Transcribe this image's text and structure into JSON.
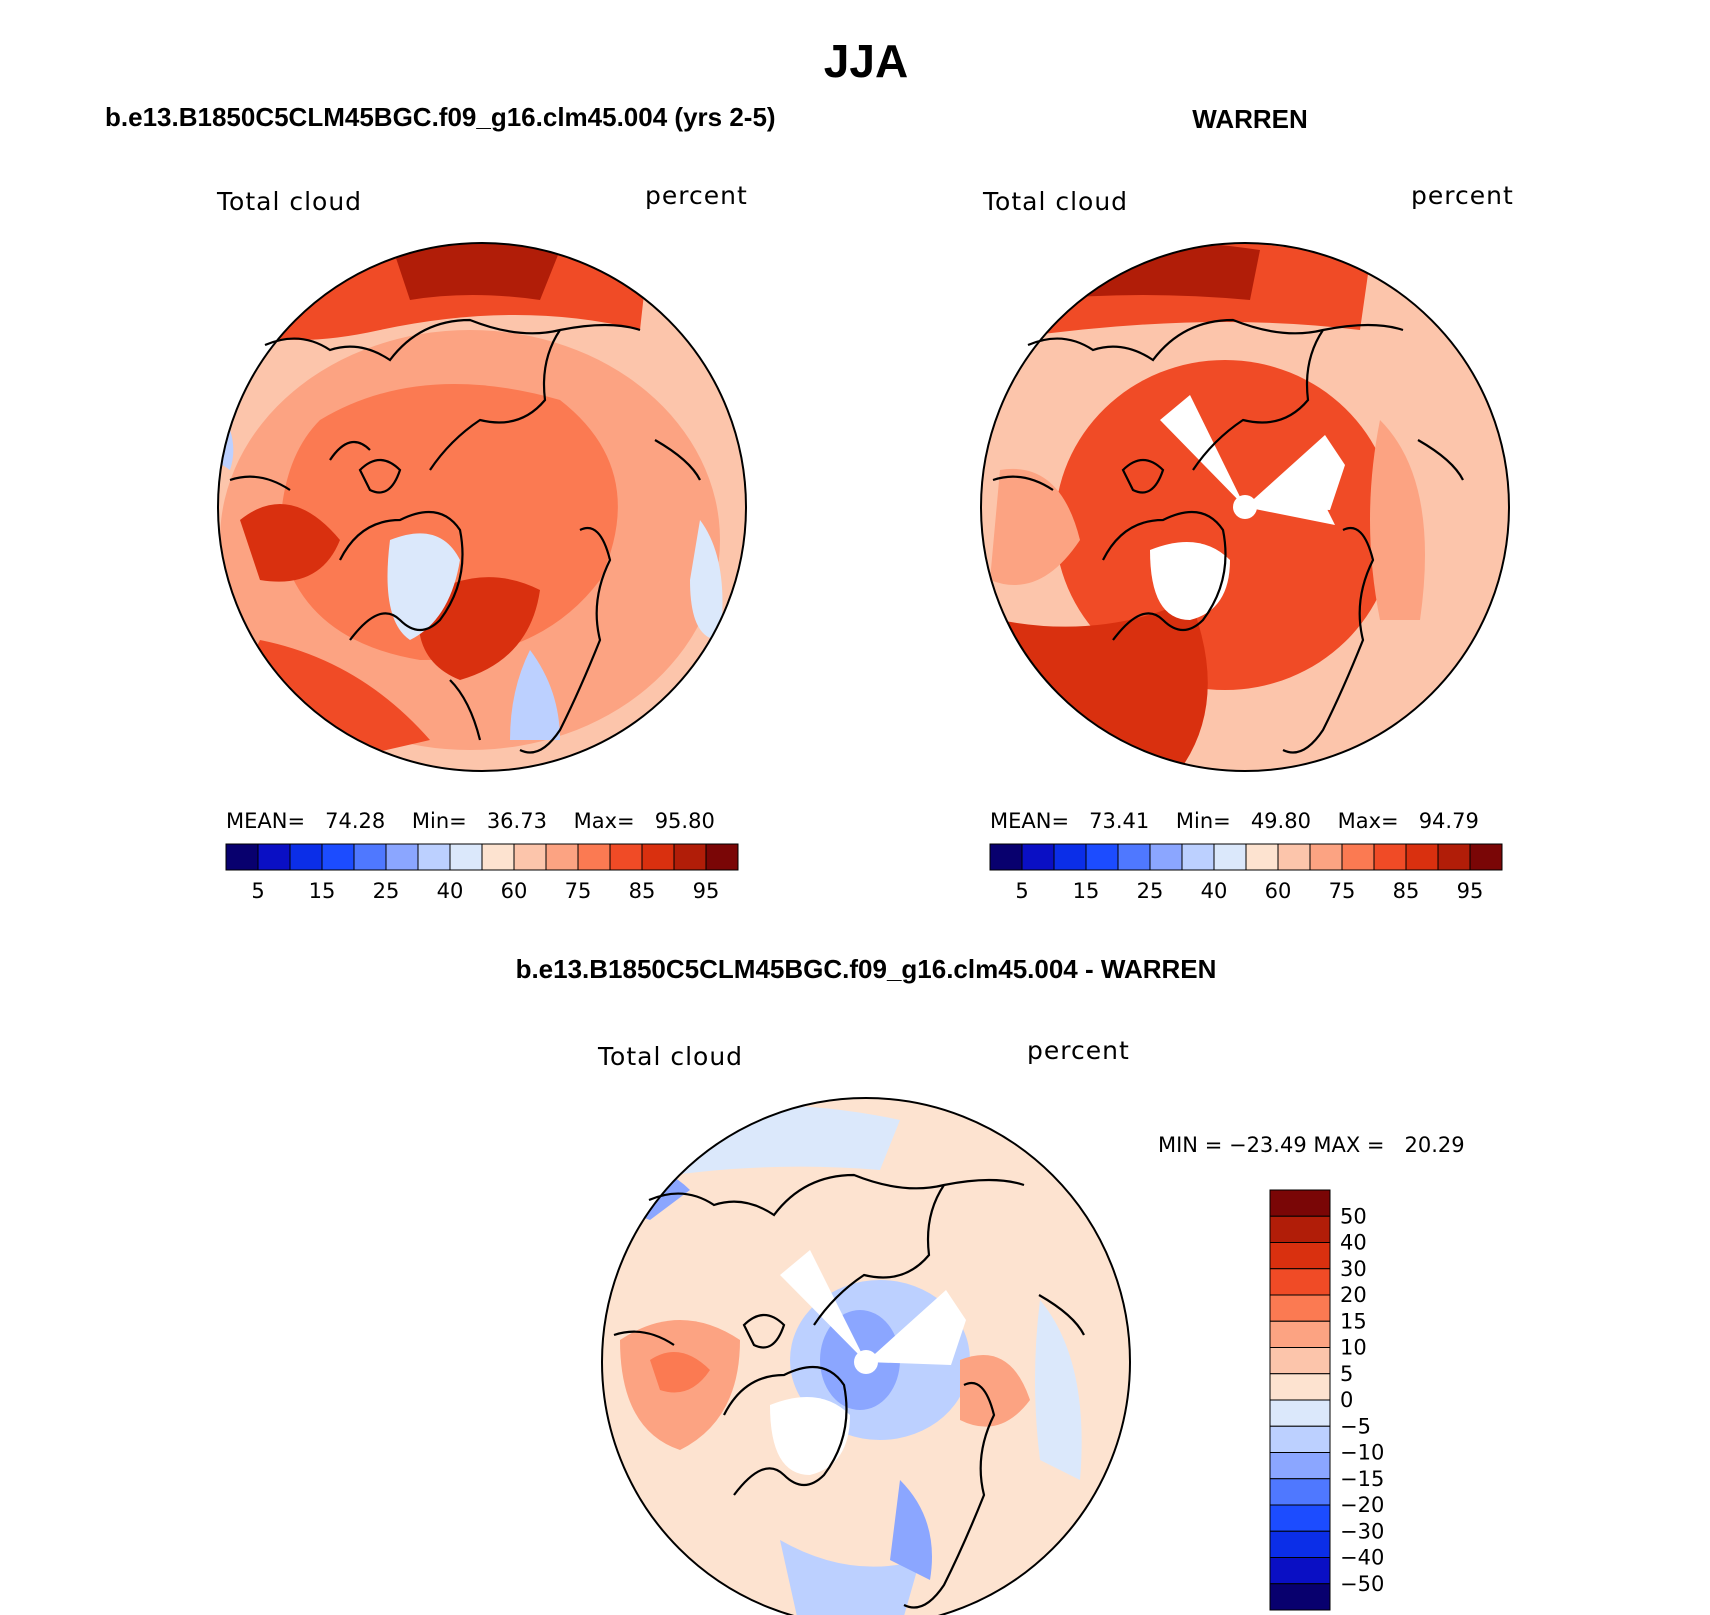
{
  "page": {
    "title": "JJA"
  },
  "panels": [
    {
      "id": "model",
      "heading": "b.e13.B1850C5CLM45BGC.f09_g16.clm45.004 (yrs 2-5)",
      "variable": "Total cloud",
      "units": "percent",
      "stats": {
        "mean_label": "MEAN=",
        "mean": "74.28",
        "min_label": "Min=",
        "min": "36.73",
        "max_label": "Max=",
        "max": "95.80"
      }
    },
    {
      "id": "obs",
      "heading": "WARREN",
      "variable": "Total cloud",
      "units": "percent",
      "stats": {
        "mean_label": "MEAN=",
        "mean": "73.41",
        "min_label": "Min=",
        "min": "49.80",
        "max_label": "Max=",
        "max": "94.79"
      }
    }
  ],
  "abs_colorbar": {
    "colors": [
      "#08006e",
      "#0a0fc4",
      "#0b2ee8",
      "#1c4cff",
      "#4f78ff",
      "#8ba6ff",
      "#bcd0ff",
      "#dbe8fb",
      "#fde3d0",
      "#fcc5ab",
      "#fca382",
      "#fb7a52",
      "#f04b26",
      "#d9300f",
      "#b11d08",
      "#7a0606"
    ],
    "tick_labels": [
      "5",
      "15",
      "25",
      "40",
      "60",
      "75",
      "85",
      "95"
    ]
  },
  "diff_panel": {
    "heading": "b.e13.B1850C5CLM45BGC.f09_g16.clm45.004 - WARREN",
    "variable": "Total cloud",
    "units": "percent",
    "minmax_text": "MIN = −23.49 MAX =   20.29"
  },
  "diff_colorbar": {
    "colors": [
      "#7a0606",
      "#b11d08",
      "#d9300f",
      "#f04b26",
      "#fb7a52",
      "#fca382",
      "#fcc5ab",
      "#fde3d0",
      "#dbe8fb",
      "#bcd0ff",
      "#8ba6ff",
      "#4f78ff",
      "#1c4cff",
      "#0b2ee8",
      "#0a0fc4",
      "#08006e"
    ],
    "tick_labels": [
      "50",
      "40",
      "30",
      "20",
      "15",
      "10",
      "5",
      "0",
      "−5",
      "−10",
      "−15",
      "−20",
      "−30",
      "−40",
      "−50"
    ]
  }
}
